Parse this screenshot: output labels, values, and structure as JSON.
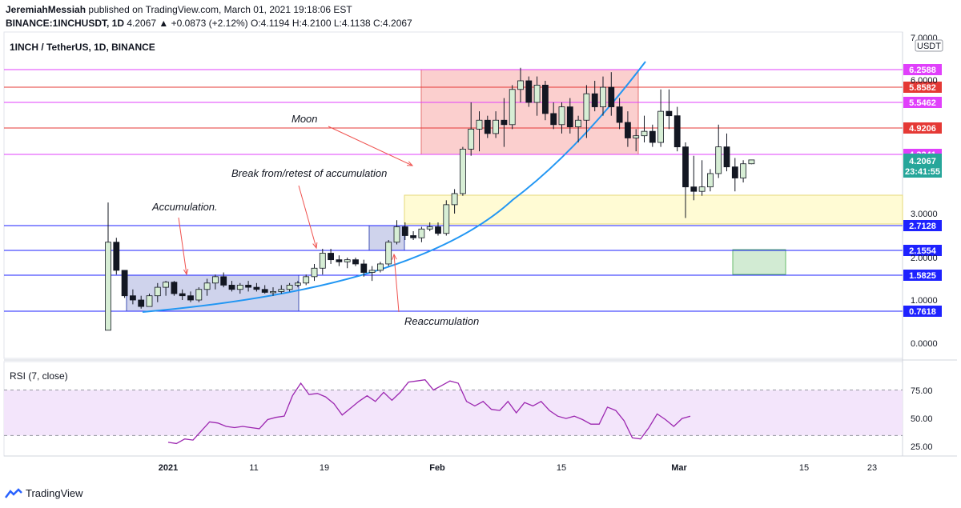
{
  "header": {
    "author": "JeremiahMessiah",
    "published": "published on TradingView.com, March 01, 2021 19:18:06 EST",
    "symbol": "BINANCE:1INCHUSDT, 1D",
    "ohlc": "4.2067 ▲ +0.0873 (+2.12%) O:4.1194 H:4.2100 L:4.1138 C:4.2067"
  },
  "chart_title": "1INCH / TetherUS, 1D, BINANCE",
  "rsi_title": "RSI (7, close)",
  "footer": {
    "brand": "TradingView"
  },
  "colors": {
    "bull_fill": "#d7eed5",
    "bear_fill": "#131722",
    "magenta": "#e040fb",
    "red": "#e53935",
    "navy": "#1e22ff",
    "curve": "#2196f3",
    "rsi_line": "#9c27b0",
    "rsi_band": "#f3e5fb"
  },
  "chart_data": [
    {
      "type": "candlestick",
      "title": "1INCH / TetherUS, 1D, BINANCE",
      "y_axis_label": "USDT",
      "y_ticks": [
        "7.0000",
        "6.0000",
        "3.0000",
        "2.0000",
        "1.0000",
        "0.0000"
      ],
      "x_ticks": [
        "2021",
        "11",
        "19",
        "Feb",
        "15",
        "Mar",
        "15",
        "23"
      ],
      "current_price": "4.2067",
      "countdown": "23:41:55",
      "levels": [
        {
          "value": "6.2588",
          "color": "magenta"
        },
        {
          "value": "5.8582",
          "color": "red"
        },
        {
          "value": "5.5462",
          "color": "magenta"
        },
        {
          "value": "4.9206",
          "color": "red"
        },
        {
          "value": "4.3241",
          "color": "magenta"
        },
        {
          "value": "2.7128",
          "color": "navy"
        },
        {
          "value": "2.1554",
          "color": "navy"
        },
        {
          "value": "1.5825",
          "color": "navy"
        },
        {
          "value": "0.7618",
          "color": "navy"
        }
      ],
      "annotations": [
        "Moon",
        "Break from/retest of accumulation",
        "Accumulation.",
        "Reaccumulation"
      ],
      "candles": [
        {
          "o": 0.3,
          "h": 3.25,
          "l": 0.3,
          "c": 2.35
        },
        {
          "o": 2.35,
          "h": 2.45,
          "l": 1.6,
          "c": 1.7
        },
        {
          "o": 1.7,
          "h": 1.7,
          "l": 1.05,
          "c": 1.1
        },
        {
          "o": 1.1,
          "h": 1.25,
          "l": 0.9,
          "c": 1.0
        },
        {
          "o": 1.0,
          "h": 1.1,
          "l": 0.8,
          "c": 0.85
        },
        {
          "o": 0.85,
          "h": 1.15,
          "l": 0.85,
          "c": 1.1
        },
        {
          "o": 1.1,
          "h": 1.4,
          "l": 0.95,
          "c": 1.3
        },
        {
          "o": 1.3,
          "h": 1.45,
          "l": 1.1,
          "c": 1.42
        },
        {
          "o": 1.42,
          "h": 1.45,
          "l": 1.1,
          "c": 1.15
        },
        {
          "o": 1.15,
          "h": 1.25,
          "l": 1.0,
          "c": 1.1
        },
        {
          "o": 1.1,
          "h": 1.2,
          "l": 0.95,
          "c": 1.0
        },
        {
          "o": 1.0,
          "h": 1.3,
          "l": 0.95,
          "c": 1.25
        },
        {
          "o": 1.25,
          "h": 1.5,
          "l": 1.1,
          "c": 1.4
        },
        {
          "o": 1.4,
          "h": 1.6,
          "l": 1.25,
          "c": 1.55
        },
        {
          "o": 1.55,
          "h": 1.65,
          "l": 1.3,
          "c": 1.35
        },
        {
          "o": 1.35,
          "h": 1.45,
          "l": 1.2,
          "c": 1.25
        },
        {
          "o": 1.25,
          "h": 1.4,
          "l": 1.15,
          "c": 1.35
        },
        {
          "o": 1.35,
          "h": 1.45,
          "l": 1.2,
          "c": 1.3
        },
        {
          "o": 1.3,
          "h": 1.4,
          "l": 1.2,
          "c": 1.25
        },
        {
          "o": 1.25,
          "h": 1.35,
          "l": 1.15,
          "c": 1.18
        },
        {
          "o": 1.18,
          "h": 1.3,
          "l": 1.1,
          "c": 1.2
        },
        {
          "o": 1.2,
          "h": 1.35,
          "l": 1.15,
          "c": 1.25
        },
        {
          "o": 1.25,
          "h": 1.4,
          "l": 1.2,
          "c": 1.35
        },
        {
          "o": 1.35,
          "h": 1.45,
          "l": 1.3,
          "c": 1.4
        },
        {
          "o": 1.4,
          "h": 1.6,
          "l": 1.35,
          "c": 1.55
        },
        {
          "o": 1.55,
          "h": 1.85,
          "l": 1.45,
          "c": 1.75
        },
        {
          "o": 1.75,
          "h": 2.2,
          "l": 1.6,
          "c": 2.1
        },
        {
          "o": 2.1,
          "h": 2.2,
          "l": 1.85,
          "c": 1.95
        },
        {
          "o": 1.95,
          "h": 2.05,
          "l": 1.8,
          "c": 1.9
        },
        {
          "o": 1.9,
          "h": 2.0,
          "l": 1.75,
          "c": 1.95
        },
        {
          "o": 1.95,
          "h": 2.0,
          "l": 1.8,
          "c": 1.85
        },
        {
          "o": 1.85,
          "h": 1.95,
          "l": 1.55,
          "c": 1.65
        },
        {
          "o": 1.65,
          "h": 1.8,
          "l": 1.45,
          "c": 1.7
        },
        {
          "o": 1.7,
          "h": 1.9,
          "l": 1.65,
          "c": 1.85
        },
        {
          "o": 1.85,
          "h": 2.4,
          "l": 1.8,
          "c": 2.35
        },
        {
          "o": 2.35,
          "h": 2.85,
          "l": 2.3,
          "c": 2.7
        },
        {
          "o": 2.7,
          "h": 2.8,
          "l": 2.4,
          "c": 2.5
        },
        {
          "o": 2.5,
          "h": 2.6,
          "l": 2.4,
          "c": 2.45
        },
        {
          "o": 2.45,
          "h": 2.7,
          "l": 2.35,
          "c": 2.65
        },
        {
          "o": 2.65,
          "h": 2.8,
          "l": 2.6,
          "c": 2.7
        },
        {
          "o": 2.7,
          "h": 2.8,
          "l": 2.5,
          "c": 2.55
        },
        {
          "o": 2.55,
          "h": 3.3,
          "l": 2.5,
          "c": 3.2
        },
        {
          "o": 3.2,
          "h": 3.55,
          "l": 3.0,
          "c": 3.45
        },
        {
          "o": 3.45,
          "h": 4.5,
          "l": 3.4,
          "c": 4.45
        },
        {
          "o": 4.45,
          "h": 5.5,
          "l": 4.3,
          "c": 4.9
        },
        {
          "o": 4.9,
          "h": 5.3,
          "l": 4.4,
          "c": 5.1
        },
        {
          "o": 5.1,
          "h": 5.2,
          "l": 4.7,
          "c": 4.8
        },
        {
          "o": 4.8,
          "h": 5.3,
          "l": 4.7,
          "c": 5.1
        },
        {
          "o": 5.1,
          "h": 5.6,
          "l": 4.5,
          "c": 5.0
        },
        {
          "o": 5.0,
          "h": 5.9,
          "l": 4.9,
          "c": 5.8
        },
        {
          "o": 5.8,
          "h": 6.3,
          "l": 5.5,
          "c": 6.0
        },
        {
          "o": 6.0,
          "h": 6.1,
          "l": 5.4,
          "c": 5.5
        },
        {
          "o": 5.5,
          "h": 6.1,
          "l": 5.2,
          "c": 5.9
        },
        {
          "o": 5.9,
          "h": 6.0,
          "l": 5.1,
          "c": 5.25
        },
        {
          "o": 5.25,
          "h": 5.5,
          "l": 4.9,
          "c": 5.0
        },
        {
          "o": 5.0,
          "h": 5.5,
          "l": 4.8,
          "c": 5.4
        },
        {
          "o": 5.4,
          "h": 5.6,
          "l": 4.8,
          "c": 4.95
        },
        {
          "o": 4.95,
          "h": 5.2,
          "l": 4.6,
          "c": 5.1
        },
        {
          "o": 5.1,
          "h": 5.9,
          "l": 4.7,
          "c": 5.7
        },
        {
          "o": 5.7,
          "h": 6.0,
          "l": 5.3,
          "c": 5.4
        },
        {
          "o": 5.4,
          "h": 6.1,
          "l": 5.2,
          "c": 5.85
        },
        {
          "o": 5.85,
          "h": 6.2,
          "l": 5.2,
          "c": 5.4
        },
        {
          "o": 5.4,
          "h": 5.6,
          "l": 4.9,
          "c": 5.05
        },
        {
          "o": 5.05,
          "h": 5.3,
          "l": 4.5,
          "c": 4.7
        },
        {
          "o": 4.7,
          "h": 4.9,
          "l": 4.4,
          "c": 4.75
        },
        {
          "o": 4.75,
          "h": 5.2,
          "l": 4.6,
          "c": 4.85
        },
        {
          "o": 4.85,
          "h": 5.0,
          "l": 4.5,
          "c": 4.6
        },
        {
          "o": 4.6,
          "h": 5.8,
          "l": 4.5,
          "c": 5.3
        },
        {
          "o": 5.3,
          "h": 5.8,
          "l": 4.9,
          "c": 5.2
        },
        {
          "o": 5.2,
          "h": 5.4,
          "l": 4.4,
          "c": 4.5
        },
        {
          "o": 4.5,
          "h": 4.6,
          "l": 2.9,
          "c": 3.6
        },
        {
          "o": 3.6,
          "h": 4.3,
          "l": 3.3,
          "c": 3.5
        },
        {
          "o": 3.5,
          "h": 4.2,
          "l": 3.4,
          "c": 3.6
        },
        {
          "o": 3.6,
          "h": 4.0,
          "l": 3.5,
          "c": 3.9
        },
        {
          "o": 3.9,
          "h": 5.0,
          "l": 3.8,
          "c": 4.5
        },
        {
          "o": 4.5,
          "h": 4.8,
          "l": 3.95,
          "c": 4.05
        },
        {
          "o": 4.05,
          "h": 4.25,
          "l": 3.5,
          "c": 3.8
        },
        {
          "o": 3.8,
          "h": 4.2,
          "l": 3.7,
          "c": 4.12
        },
        {
          "o": 4.12,
          "h": 4.21,
          "l": 4.11,
          "c": 4.2067
        }
      ]
    },
    {
      "type": "line",
      "title": "RSI (7, close)",
      "y_ticks": [
        "75.00",
        "50.00",
        "25.00"
      ],
      "band": [
        30,
        70
      ],
      "values": [
        24,
        23,
        27,
        26,
        34,
        42,
        41,
        38,
        37,
        38,
        37,
        36,
        44,
        46,
        47,
        65,
        76,
        66,
        67,
        64,
        58,
        48,
        54,
        60,
        65,
        60,
        68,
        61,
        68,
        77,
        78,
        79,
        70,
        74,
        78,
        76,
        60,
        56,
        60,
        53,
        52,
        60,
        50,
        59,
        56,
        60,
        52,
        47,
        45,
        47,
        44,
        40,
        40,
        55,
        52,
        43,
        28,
        27,
        37,
        49,
        44,
        38,
        45,
        47
      ]
    }
  ]
}
